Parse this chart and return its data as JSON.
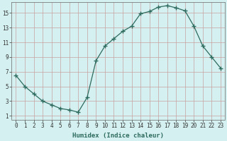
{
  "x": [
    0,
    1,
    2,
    3,
    4,
    5,
    6,
    7,
    8,
    9,
    10,
    11,
    12,
    13,
    14,
    15,
    16,
    17,
    18,
    19,
    20,
    21,
    22,
    23
  ],
  "y": [
    6.5,
    5.0,
    4.0,
    3.0,
    2.5,
    2.0,
    1.8,
    1.5,
    3.5,
    8.5,
    10.5,
    11.5,
    12.5,
    13.2,
    14.9,
    15.2,
    15.8,
    16.0,
    15.7,
    15.3,
    13.2,
    10.5,
    9.0,
    7.5
  ],
  "xlabel": "Humidex (Indice chaleur)",
  "line_color": "#2d6b5e",
  "marker": "+",
  "bg_color": "#d5f0f0",
  "grid_color_major": "#c8a0a0",
  "grid_color_minor": "#c8a0a0",
  "xlim": [
    -0.5,
    23.5
  ],
  "ylim": [
    0.5,
    16.5
  ],
  "xticks": [
    0,
    1,
    2,
    3,
    4,
    5,
    6,
    7,
    8,
    9,
    10,
    11,
    12,
    13,
    14,
    15,
    16,
    17,
    18,
    19,
    20,
    21,
    22,
    23
  ],
  "yticks": [
    1,
    3,
    5,
    7,
    9,
    11,
    13,
    15
  ],
  "tick_fontsize": 5.5,
  "xlabel_fontsize": 6.5
}
